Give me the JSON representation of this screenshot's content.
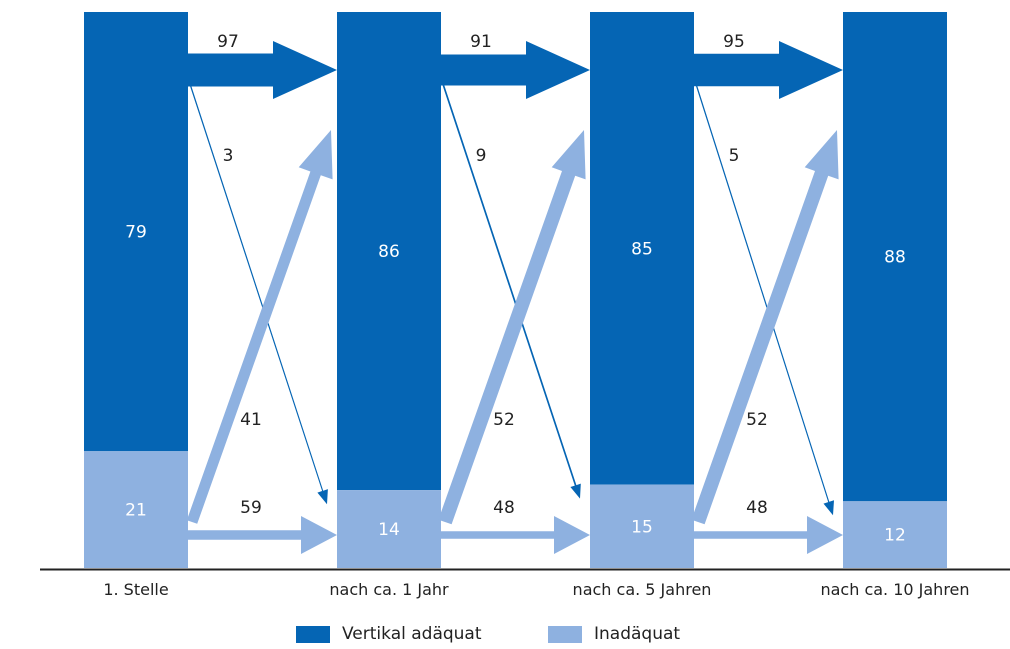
{
  "chart_data": {
    "type": "bar",
    "categories": [
      "1. Stelle",
      "nach ca. 1 Jahr",
      "nach ca. 5 Jahren",
      "nach ca. 10 Jahren"
    ],
    "series": [
      {
        "name": "Vertikal adäquat",
        "values": [
          79,
          86,
          85,
          88
        ],
        "color": "#0565b4"
      },
      {
        "name": "Inadäquat",
        "values": [
          21,
          14,
          15,
          12
        ],
        "color": "#8eb1e0"
      }
    ],
    "transitions": [
      {
        "from": 0,
        "to": 1,
        "adaequat_to_adaequat": 97,
        "adaequat_to_inadaequat": 3,
        "inadaequat_to_adaequat": 41,
        "inadaequat_to_inadaequat": 59
      },
      {
        "from": 1,
        "to": 2,
        "adaequat_to_adaequat": 91,
        "adaequat_to_inadaequat": 9,
        "inadaequat_to_adaequat": 52,
        "inadaequat_to_inadaequat": 48
      },
      {
        "from": 2,
        "to": 3,
        "adaequat_to_adaequat": 95,
        "adaequat_to_inadaequat": 5,
        "inadaequat_to_adaequat": 52,
        "inadaequat_to_inadaequat": 48
      }
    ],
    "stacked": true,
    "ylim": [
      0,
      100
    ],
    "grid": false,
    "legend_position": "bottom-center"
  }
}
